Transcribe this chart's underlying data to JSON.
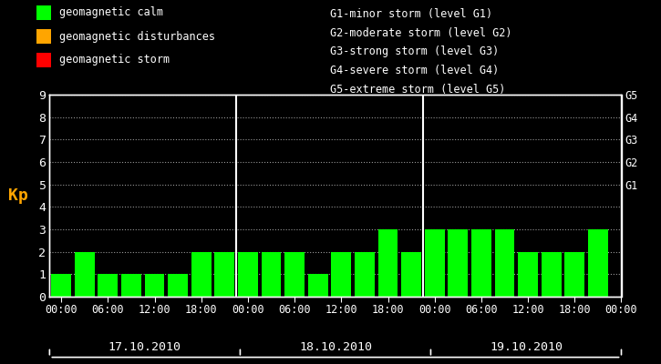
{
  "background_color": "#000000",
  "plot_bg_color": "#000000",
  "bar_color_calm": "#00ff00",
  "bar_color_disturb": "#ffa500",
  "bar_color_storm": "#ff0000",
  "grid_color": "#ffffff",
  "text_color": "#ffffff",
  "axis_color": "#ffffff",
  "title_color": "#ffa500",
  "kp_label_color": "#ffa500",
  "days": [
    "17.10.2010",
    "18.10.2010",
    "19.10.2010"
  ],
  "kp_values": [
    [
      1,
      2,
      1,
      1,
      1,
      1,
      2,
      2
    ],
    [
      2,
      2,
      2,
      1,
      2,
      2,
      3,
      2
    ],
    [
      3,
      3,
      3,
      3,
      2,
      2,
      2,
      3
    ]
  ],
  "ylim": [
    0,
    9
  ],
  "yticks": [
    0,
    1,
    2,
    3,
    4,
    5,
    6,
    7,
    8,
    9
  ],
  "ylabel": "Kp",
  "g_labels": [
    "G5",
    "G4",
    "G3",
    "G2",
    "G1"
  ],
  "g_positions": [
    9,
    8,
    7,
    6,
    5
  ],
  "legend_items": [
    {
      "label": "geomagnetic calm",
      "color": "#00ff00"
    },
    {
      "label": "geomagnetic disturbances",
      "color": "#ffa500"
    },
    {
      "label": "geomagnetic storm",
      "color": "#ff0000"
    }
  ],
  "storm_text": [
    "G1-minor storm (level G1)",
    "G2-moderate storm (level G2)",
    "G3-strong storm (level G3)",
    "G4-severe storm (level G4)",
    "G5-extreme storm (level G5)"
  ],
  "font_family": "monospace",
  "font_size": 8.5,
  "bar_width": 0.85
}
